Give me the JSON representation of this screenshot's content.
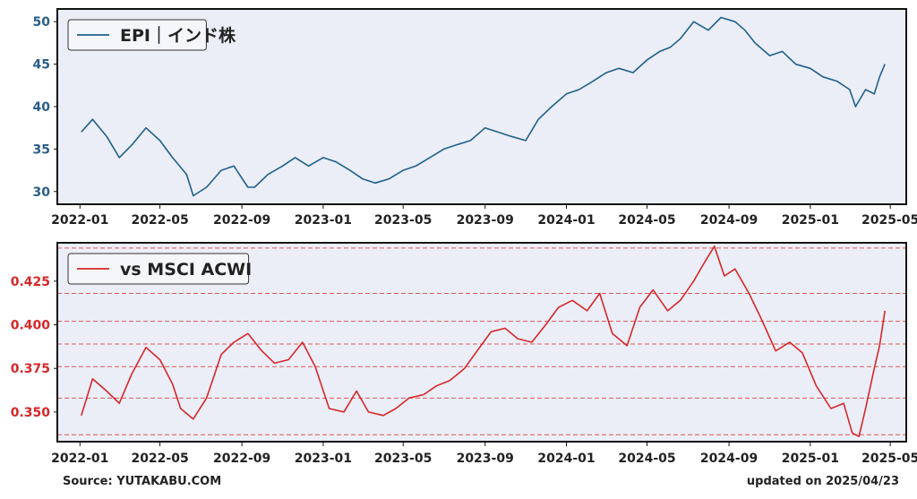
{
  "chart_data": [
    {
      "type": "line",
      "x_ticks": [
        "2022-01",
        "2022-05",
        "2022-09",
        "2023-01",
        "2023-05",
        "2023-09",
        "2024-01",
        "2024-05",
        "2024-09",
        "2025-01",
        "2025-05"
      ],
      "y_ticks": [
        "30",
        "35",
        "40",
        "45",
        "50"
      ],
      "ylim": [
        28.5,
        51.5
      ],
      "grid": false,
      "legend_position": "top-left",
      "colors": {
        "line": "#1f5f8b",
        "tick": "#2a5e8c",
        "background": "#ebeef7"
      },
      "series": [
        {
          "name": "EPI｜インド株",
          "x": [
            "2022-01-03",
            "2022-01-20",
            "2022-02-10",
            "2022-03-01",
            "2022-03-20",
            "2022-04-10",
            "2022-05-01",
            "2022-05-20",
            "2022-06-10",
            "2022-06-20",
            "2022-07-10",
            "2022-08-01",
            "2022-08-20",
            "2022-09-10",
            "2022-09-20",
            "2022-10-10",
            "2022-11-01",
            "2022-11-20",
            "2022-12-10",
            "2023-01-01",
            "2023-01-20",
            "2023-02-10",
            "2023-03-01",
            "2023-03-20",
            "2023-04-10",
            "2023-05-01",
            "2023-05-20",
            "2023-06-10",
            "2023-07-01",
            "2023-07-20",
            "2023-08-10",
            "2023-09-01",
            "2023-09-20",
            "2023-10-10",
            "2023-11-01",
            "2023-11-20",
            "2023-12-10",
            "2024-01-01",
            "2024-01-20",
            "2024-02-10",
            "2024-03-01",
            "2024-03-20",
            "2024-04-10",
            "2024-05-01",
            "2024-05-20",
            "2024-06-05",
            "2024-06-20",
            "2024-07-10",
            "2024-08-01",
            "2024-08-20",
            "2024-09-10",
            "2024-09-25",
            "2024-10-10",
            "2024-11-01",
            "2024-11-20",
            "2024-12-10",
            "2025-01-01",
            "2025-01-20",
            "2025-02-10",
            "2025-03-01",
            "2025-03-10",
            "2025-03-25",
            "2025-04-07",
            "2025-04-15",
            "2025-04-23"
          ],
          "y": [
            37.0,
            38.5,
            36.5,
            34.0,
            35.5,
            37.5,
            36.0,
            34.0,
            32.0,
            29.5,
            30.5,
            32.5,
            33.0,
            30.5,
            30.5,
            32.0,
            33.0,
            34.0,
            33.0,
            34.0,
            33.5,
            32.5,
            31.5,
            31.0,
            31.5,
            32.5,
            33.0,
            34.0,
            35.0,
            35.5,
            36.0,
            37.5,
            37.0,
            36.5,
            36.0,
            38.5,
            40.0,
            41.5,
            42.0,
            43.0,
            44.0,
            44.5,
            44.0,
            45.5,
            46.5,
            47.0,
            48.0,
            50.0,
            49.0,
            50.5,
            50.0,
            49.0,
            47.5,
            46.0,
            46.5,
            45.0,
            44.5,
            43.5,
            43.0,
            42.0,
            40.0,
            42.0,
            41.5,
            43.5,
            45.0
          ]
        }
      ]
    },
    {
      "type": "line",
      "x_ticks": [
        "2022-01",
        "2022-05",
        "2022-09",
        "2023-01",
        "2023-05",
        "2023-09",
        "2024-01",
        "2024-05",
        "2024-09",
        "2025-01",
        "2025-05"
      ],
      "y_ticks": [
        "0.350",
        "0.375",
        "0.400",
        "0.425"
      ],
      "ylim": [
        0.333,
        0.447
      ],
      "grid": false,
      "legend_position": "top-left",
      "reference_lines": [
        0.444,
        0.418,
        0.402,
        0.389,
        0.376,
        0.358,
        0.337
      ],
      "colors": {
        "line": "#d62728",
        "tick": "#d62728",
        "reference": "#e05555",
        "background": "#ebeef7"
      },
      "series": [
        {
          "name": "vs MSCI ACWI",
          "x": [
            "2022-01-03",
            "2022-01-20",
            "2022-02-10",
            "2022-03-01",
            "2022-03-20",
            "2022-04-10",
            "2022-05-01",
            "2022-05-20",
            "2022-06-01",
            "2022-06-20",
            "2022-07-10",
            "2022-08-01",
            "2022-08-20",
            "2022-09-10",
            "2022-10-01",
            "2022-10-20",
            "2022-11-10",
            "2022-12-01",
            "2022-12-20",
            "2023-01-10",
            "2023-02-01",
            "2023-02-20",
            "2023-03-10",
            "2023-04-01",
            "2023-04-20",
            "2023-05-10",
            "2023-06-01",
            "2023-06-20",
            "2023-07-10",
            "2023-08-01",
            "2023-08-20",
            "2023-09-10",
            "2023-10-01",
            "2023-10-20",
            "2023-11-10",
            "2023-12-01",
            "2023-12-20",
            "2024-01-10",
            "2024-02-01",
            "2024-02-20",
            "2024-03-10",
            "2024-04-01",
            "2024-04-20",
            "2024-05-10",
            "2024-06-01",
            "2024-06-20",
            "2024-07-10",
            "2024-07-25",
            "2024-08-10",
            "2024-08-25",
            "2024-09-10",
            "2024-10-01",
            "2024-10-20",
            "2024-11-10",
            "2024-12-01",
            "2024-12-20",
            "2025-01-10",
            "2025-02-01",
            "2025-02-20",
            "2025-03-05",
            "2025-03-15",
            "2025-03-25",
            "2025-04-07",
            "2025-04-15",
            "2025-04-23"
          ],
          "y": [
            0.348,
            0.369,
            0.362,
            0.355,
            0.372,
            0.387,
            0.38,
            0.366,
            0.352,
            0.346,
            0.358,
            0.383,
            0.39,
            0.395,
            0.385,
            0.378,
            0.38,
            0.39,
            0.376,
            0.352,
            0.35,
            0.362,
            0.35,
            0.348,
            0.352,
            0.358,
            0.36,
            0.365,
            0.368,
            0.375,
            0.385,
            0.396,
            0.398,
            0.392,
            0.39,
            0.4,
            0.41,
            0.414,
            0.408,
            0.418,
            0.395,
            0.388,
            0.41,
            0.42,
            0.408,
            0.414,
            0.425,
            0.435,
            0.445,
            0.428,
            0.432,
            0.418,
            0.403,
            0.385,
            0.39,
            0.384,
            0.365,
            0.352,
            0.355,
            0.338,
            0.336,
            0.352,
            0.375,
            0.388,
            0.408
          ]
        }
      ]
    }
  ],
  "footer": {
    "source": "Source: YUTAKABU.COM",
    "updated": "updated on 2025/04/23"
  }
}
